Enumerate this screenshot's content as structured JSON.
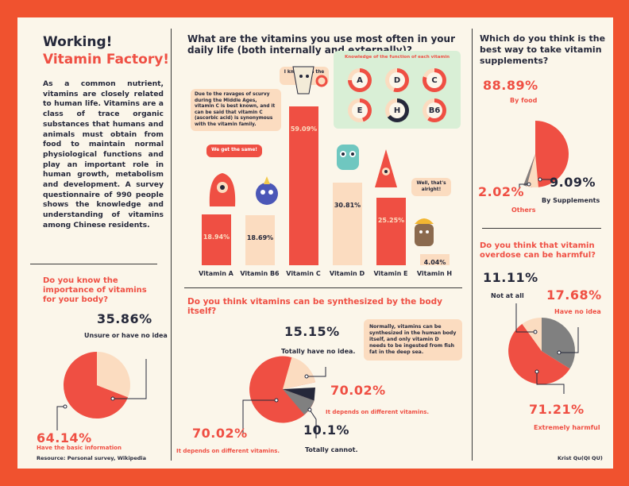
{
  "intro": {
    "title_line1": "Working!",
    "title_line2": "Vitamin Factory!",
    "body": "As a common nutrient, vitamins are closely related to human life. Vitamins are a class of trace organic substances that humans and animals must obtain from food to maintain normal physiological functions and play an important role in human growth, metabolism and development. A survey questionnaire of 990 people shows the knowledge and understanding of vitamins among Chinese residents."
  },
  "importance": {
    "question": "Do you know the importance of vitamins for your body?",
    "unsure_pct": "35.86%",
    "unsure_label": "Unsure or have no idea",
    "basic_pct": "64.14%",
    "basic_label": "Have the basic information"
  },
  "resource": "Resource: Personal survey, Wikipedia",
  "author": "Krist Qu(QI QU)",
  "usage": {
    "question": "What are the vitamins you use most often in your daily life (both internally and externally)?",
    "bubble_scurvy": "Due to the ravages of scurvy during the Middle Ages, vitamin C is best known, and it can be said that vitamin C (ascorbic acid) is synonymous with the vitamin family.",
    "bubble_best": "I know I am the BEST!",
    "bubble_same": "We get the same!",
    "bubble_alright": "Well, that's alright!",
    "knowledge_title": "Knowledge of the function of each vitamin",
    "knowledge_letters": [
      "A",
      "D",
      "C",
      "E",
      "H",
      "B6"
    ]
  },
  "synth": {
    "question": "Do you think vitamins can be synthesized by the body itself?",
    "note": "Normally, vitamins can be synthesized in the human body itself, and only vitamin D needs to be ingested from fish fat in the deep sea.",
    "have_no_idea_pct": "15.15%",
    "have_no_idea_label": "Totally have no idea.",
    "depends_pct": "70.02%",
    "depends_label": "It depends on different vitamins.",
    "cannot_pct": "10.1%",
    "cannot_label": "Totally cannot.",
    "depends_pct_2": "70.02%",
    "depends_label_2": "It depends on different vitamins."
  },
  "take": {
    "question": "Which do you think is the best way to take vitamin supplements?",
    "food_pct": "88.89%",
    "food_label": "By food",
    "others_pct": "2.02%",
    "others_label": "Others",
    "supp_pct": "9.09%",
    "supp_label": "By Supplements"
  },
  "overdose": {
    "question": "Do you think that vitamin overdose can be harmful?",
    "not_pct": "11.11%",
    "not_label": "Not at all",
    "idea_pct": "17.68%",
    "idea_label": "Have no idea",
    "harm_pct": "71.21%",
    "harm_label": "Extremely harmful"
  },
  "colors": {
    "accent": "#ef4f43",
    "peach": "#fbdcc0",
    "dark": "#25283a",
    "grey": "#808080",
    "frame": "#f0522f",
    "paper": "#fbf6ea"
  },
  "chart_data": [
    {
      "type": "bar",
      "title": "What are the vitamins you use most often in your daily life (both internally and externally)?",
      "categories": [
        "Vitamin A",
        "Vitamin B6",
        "Vitamin C",
        "Vitamin D",
        "Vitamin E",
        "Vitamin H"
      ],
      "values": [
        18.94,
        18.69,
        59.09,
        30.81,
        25.25,
        4.04
      ],
      "value_labels": [
        "18.94%",
        "18.69%",
        "59.09%",
        "30.81%",
        "25.25%",
        "4.04%"
      ],
      "colors": [
        "#ef4f43",
        "#fbdcc0",
        "#ef4f43",
        "#fbdcc0",
        "#ef4f43",
        "#fbdcc0"
      ],
      "ylim": [
        0,
        65
      ]
    },
    {
      "type": "pie",
      "title": "Do you know the importance of vitamins for your body?",
      "labels": [
        "Have the basic information",
        "Unsure or have no idea"
      ],
      "values": [
        64.14,
        35.86
      ],
      "colors": [
        "#ef4f43",
        "#fbdcc0"
      ]
    },
    {
      "type": "pie",
      "title": "Do you think vitamins can be synthesized by the body itself?",
      "labels": [
        "It depends on different vitamins.",
        "Totally have no idea.",
        "Totally cannot."
      ],
      "values": [
        70.02,
        15.15,
        10.1
      ],
      "colors": [
        "#ef4f43",
        "#fbdcc0",
        "#808080"
      ]
    },
    {
      "type": "pie",
      "title": "Which do you think is the best way to take vitamin supplements?",
      "labels": [
        "By food",
        "Others",
        "By Supplements"
      ],
      "values": [
        88.89,
        2.02,
        9.09
      ],
      "colors": [
        "#ef4f43",
        "#808080",
        "#fbdcc0"
      ]
    },
    {
      "type": "pie",
      "title": "Do you think that vitamin overdose can be harmful?",
      "labels": [
        "Extremely harmful",
        "Not at all",
        "Have no idea"
      ],
      "values": [
        71.21,
        11.11,
        17.68
      ],
      "colors": [
        "#ef4f43",
        "#fbdcc0",
        "#808080"
      ]
    }
  ]
}
